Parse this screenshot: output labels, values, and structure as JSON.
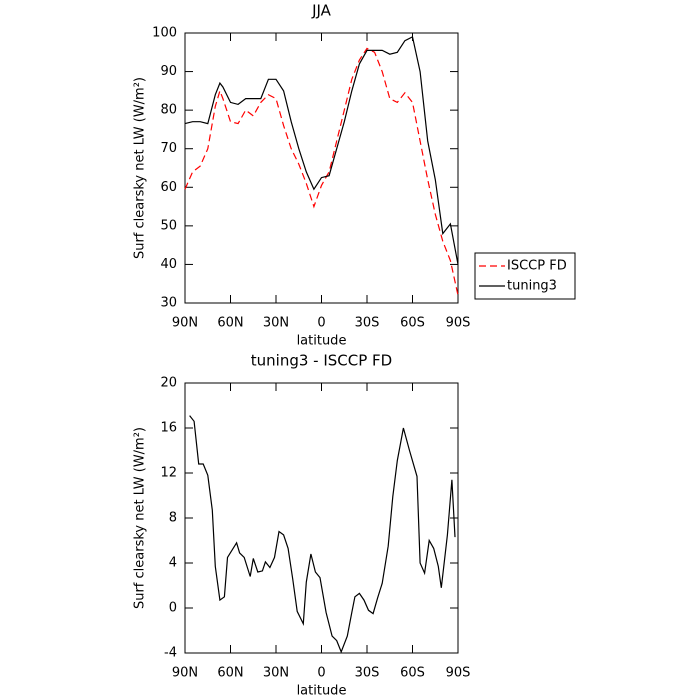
{
  "chart_data": [
    {
      "type": "line",
      "title": "JJA",
      "x_label": "latitude",
      "y_label": "Surf clearsky net LW (W/m²)",
      "x": [
        90,
        85,
        80,
        75,
        70,
        67,
        65,
        60,
        55,
        50,
        45,
        40,
        35,
        30,
        25,
        20,
        15,
        10,
        5,
        0,
        -5,
        -10,
        -15,
        -20,
        -25,
        -30,
        -35,
        -40,
        -45,
        -50,
        -55,
        -60,
        -65,
        -70,
        -75,
        -80,
        -85,
        -90
      ],
      "series": [
        {
          "name": "ISCCP FD",
          "color": "#ff0000",
          "dashed": true,
          "values": [
            59.5,
            64,
            65.5,
            70,
            81,
            85,
            83,
            77,
            76.5,
            80,
            78.5,
            82,
            84,
            83,
            76,
            70,
            66,
            61,
            55,
            60.5,
            64,
            72,
            80,
            88,
            93,
            96,
            95,
            90,
            83,
            82,
            84.5,
            82,
            72,
            62,
            53,
            46,
            41,
            32
          ]
        },
        {
          "name": "tuning3",
          "color": "#000000",
          "dashed": false,
          "values": [
            76.5,
            77,
            77,
            76.5,
            84,
            87,
            86,
            82,
            81.5,
            83,
            83,
            83,
            88,
            88,
            85,
            77,
            70,
            64,
            59.5,
            62.5,
            63,
            70,
            77,
            85,
            92,
            95.5,
            95.5,
            95.5,
            94.5,
            95,
            98,
            99,
            90,
            72,
            62,
            48,
            50.5,
            40
          ]
        }
      ],
      "xlim": [
        90,
        -90
      ],
      "xticks": [
        {
          "value": 90,
          "label": "90N"
        },
        {
          "value": 60,
          "label": "60N"
        },
        {
          "value": 30,
          "label": "30N"
        },
        0,
        {
          "value": -30,
          "label": "30S"
        },
        {
          "value": -60,
          "label": "60S"
        },
        {
          "value": -90,
          "label": "90S"
        }
      ],
      "ylim": [
        30,
        100
      ],
      "yticks": [
        30,
        40,
        50,
        60,
        70,
        80,
        90,
        100
      ],
      "legend": "right"
    },
    {
      "type": "line",
      "title": "tuning3 - ISCCP FD",
      "x_label": "latitude",
      "y_label": "Surf clearsky net LW (W/m²)",
      "x": [
        87,
        84,
        81,
        78,
        75,
        72,
        70,
        67,
        64,
        62,
        56,
        54,
        51,
        47,
        45,
        42,
        39,
        37,
        34,
        31,
        28,
        25,
        22,
        19,
        16,
        12,
        10,
        7,
        4,
        1,
        -3,
        -7,
        -10,
        -13,
        -17,
        -20,
        -22,
        -25,
        -28,
        -31,
        -34,
        -37,
        -40,
        -44,
        -47,
        -50,
        -54,
        -58,
        -63,
        -65,
        -68,
        -71,
        -74,
        -77,
        -79,
        -83,
        -86,
        -88
      ],
      "values": [
        17.1,
        16.6,
        12.8,
        12.8,
        11.8,
        8.7,
        3.7,
        0.7,
        1.0,
        4.5,
        5.8,
        4.9,
        4.5,
        2.8,
        4.4,
        3.2,
        3.3,
        4.1,
        3.6,
        4.5,
        6.8,
        6.5,
        5.3,
        2.6,
        -0.3,
        -1.4,
        2.3,
        4.8,
        3.2,
        2.7,
        -0.4,
        -2.5,
        -2.9,
        -3.9,
        -2.5,
        -0.4,
        1.0,
        1.3,
        0.7,
        -0.2,
        -0.5,
        0.9,
        2.2,
        5.5,
        9.9,
        13.1,
        16.0,
        14.0,
        11.7,
        4.0,
        3.1,
        6.0,
        5.3,
        3.7,
        1.8,
        6.5,
        11.4,
        6.3
      ],
      "color": "#000000",
      "xlim": [
        90,
        -90
      ],
      "xticks": [
        {
          "value": 90,
          "label": "90N"
        },
        {
          "value": 60,
          "label": "60N"
        },
        {
          "value": 30,
          "label": "30N"
        },
        0,
        {
          "value": -30,
          "label": "30S"
        },
        {
          "value": -60,
          "label": "60S"
        },
        {
          "value": -90,
          "label": "90S"
        }
      ],
      "ylim": [
        -4,
        20
      ],
      "yticks": [
        -4,
        0,
        4,
        8,
        12,
        16,
        20
      ]
    }
  ]
}
